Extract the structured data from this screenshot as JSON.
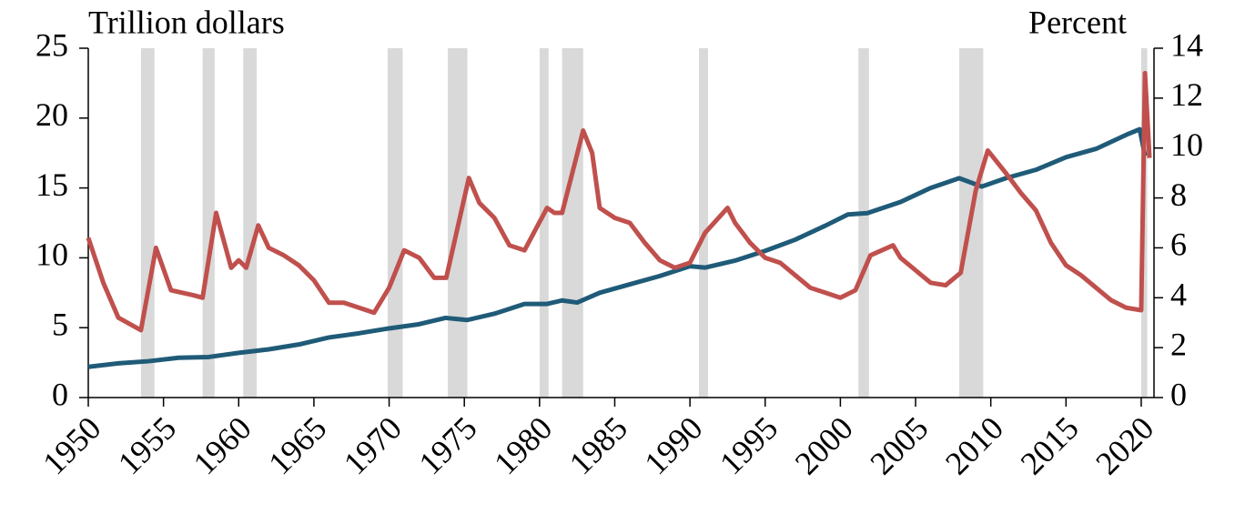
{
  "chart_data": {
    "type": "line",
    "ylabel": "Trillion dollars",
    "y2label": "Percent",
    "xlim": [
      1950,
      2020.85
    ],
    "xticks": [
      1950,
      1955,
      1960,
      1965,
      1970,
      1975,
      1980,
      1985,
      1990,
      1995,
      2000,
      2005,
      2010,
      2015,
      2020
    ],
    "ylim": [
      0,
      25
    ],
    "yticks": [
      0,
      5,
      10,
      15,
      20,
      25
    ],
    "y2lim": [
      0,
      14
    ],
    "y2ticks": [
      0,
      2,
      4,
      6,
      8,
      10,
      12,
      14
    ],
    "shade_color": "#d9d9d9",
    "recessions": [
      [
        1953.5,
        1954.4
      ],
      [
        1957.6,
        1958.4
      ],
      [
        1960.3,
        1961.2
      ],
      [
        1969.9,
        1970.9
      ],
      [
        1973.9,
        1975.2
      ],
      [
        1980.0,
        1980.6
      ],
      [
        1981.5,
        1982.9
      ],
      [
        1990.6,
        1991.2
      ],
      [
        2001.2,
        2001.9
      ],
      [
        2007.9,
        2009.5
      ],
      [
        2020.0,
        2020.4
      ]
    ],
    "series": [
      {
        "color": "#1f5b78",
        "x": [
          1950,
          1952,
          1954,
          1956,
          1958,
          1960,
          1962,
          1964,
          1966,
          1968,
          1970,
          1972,
          1973.75,
          1975.2,
          1977,
          1979,
          1980.5,
          1981.5,
          1982.5,
          1984,
          1986,
          1988,
          1990,
          1991,
          1993,
          1995,
          1997,
          1999,
          2000.5,
          2001.8,
          2004,
          2006,
          2007.9,
          2009.4,
          2011,
          2013,
          2015,
          2017,
          2019,
          2019.9,
          2020.25
        ],
        "values": [
          2.2,
          2.45,
          2.6,
          2.85,
          2.9,
          3.2,
          3.45,
          3.8,
          4.3,
          4.6,
          4.95,
          5.25,
          5.7,
          5.55,
          6.0,
          6.7,
          6.7,
          6.95,
          6.8,
          7.5,
          8.1,
          8.7,
          9.4,
          9.3,
          9.8,
          10.5,
          11.3,
          12.3,
          13.1,
          13.2,
          14.0,
          15.0,
          15.7,
          15.1,
          15.7,
          16.3,
          17.2,
          17.8,
          18.8,
          19.2,
          17.3
        ]
      },
      {
        "color": "#c0504d",
        "axis": "y2",
        "x": [
          1950,
          1951,
          1952,
          1953.5,
          1954.5,
          1955.5,
          1957,
          1957.6,
          1958.5,
          1959.5,
          1960,
          1960.5,
          1961.3,
          1962,
          1963,
          1964,
          1965,
          1966,
          1967,
          1968,
          1969,
          1970,
          1971,
          1972,
          1973,
          1973.8,
          1975.3,
          1976,
          1977,
          1978,
          1979,
          1980.5,
          1981,
          1981.5,
          1982.9,
          1983.5,
          1984,
          1985,
          1986,
          1987,
          1988,
          1989,
          1990,
          1991,
          1992.5,
          1993,
          1994,
          1995,
          1996,
          1997,
          1998,
          1999,
          2000,
          2001,
          2002,
          2003.5,
          2004,
          2005,
          2006,
          2007,
          2008,
          2009,
          2009.8,
          2011,
          2012,
          2013,
          2014,
          2015,
          2016,
          2017,
          2018,
          2019,
          2020.0,
          2020.25,
          2020.55
        ],
        "values": [
          6.4,
          4.6,
          3.2,
          2.7,
          6.0,
          4.3,
          4.1,
          4.0,
          7.4,
          5.2,
          5.5,
          5.2,
          6.9,
          6.0,
          5.7,
          5.3,
          4.7,
          3.8,
          3.8,
          3.6,
          3.4,
          4.4,
          5.9,
          5.6,
          4.8,
          4.8,
          8.8,
          7.8,
          7.2,
          6.1,
          5.9,
          7.6,
          7.4,
          7.4,
          10.7,
          9.8,
          7.6,
          7.2,
          7.0,
          6.2,
          5.5,
          5.2,
          5.4,
          6.6,
          7.6,
          7.0,
          6.2,
          5.6,
          5.4,
          4.9,
          4.4,
          4.2,
          4.0,
          4.3,
          5.7,
          6.1,
          5.6,
          5.1,
          4.6,
          4.5,
          5.0,
          8.3,
          9.9,
          9.0,
          8.2,
          7.5,
          6.2,
          5.3,
          4.9,
          4.4,
          3.9,
          3.6,
          3.5,
          13.0,
          9.6
        ]
      }
    ]
  }
}
